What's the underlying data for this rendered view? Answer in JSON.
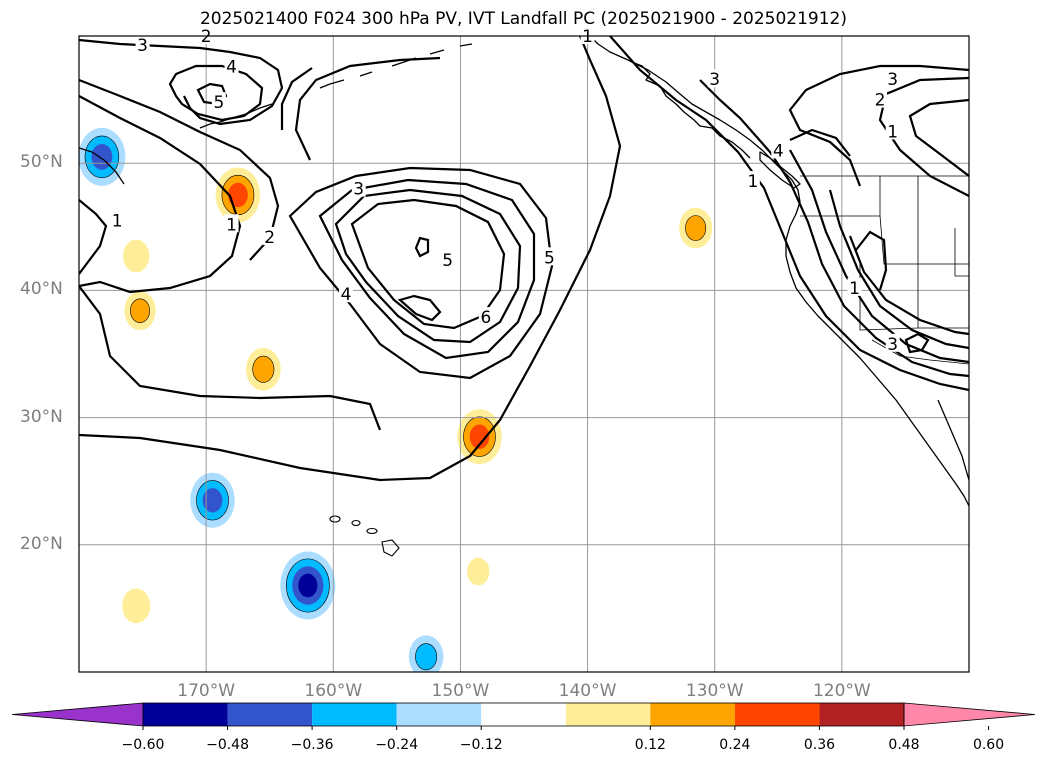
{
  "title": "2025021400 F024 300 hPa PV, IVT Landfall PC (2025021900 - 2025021912)",
  "map": {
    "projection": "plate-carree",
    "lon_range": [
      -180,
      -110
    ],
    "lat_range": [
      10,
      60
    ],
    "gridlines": true,
    "lat_ticks": [
      {
        "value": 50,
        "label": "50°N"
      },
      {
        "value": 40,
        "label": "40°N"
      },
      {
        "value": 30,
        "label": "30°N"
      },
      {
        "value": 20,
        "label": "20°N"
      }
    ],
    "lon_ticks": [
      {
        "value": -170,
        "label": "170°W"
      },
      {
        "value": -160,
        "label": "160°W"
      },
      {
        "value": -150,
        "label": "150°W"
      },
      {
        "value": -140,
        "label": "140°W"
      },
      {
        "value": -130,
        "label": "130°W"
      },
      {
        "value": -120,
        "label": "120°W"
      }
    ]
  },
  "pv_contours": {
    "variable": "300 hPa PV",
    "labels": [
      {
        "text": "3",
        "lon": -175,
        "lat": 59.3
      },
      {
        "text": "2",
        "lon": -170,
        "lat": 60.0
      },
      {
        "text": "4",
        "lon": -168,
        "lat": 57.6
      },
      {
        "text": "5",
        "lon": -169,
        "lat": 54.8
      },
      {
        "text": "3",
        "lon": -158,
        "lat": 48.0
      },
      {
        "text": "1",
        "lon": -168,
        "lat": 45.2
      },
      {
        "text": "2",
        "lon": -165,
        "lat": 44.2
      },
      {
        "text": "1",
        "lon": -177,
        "lat": 45.5
      },
      {
        "text": "4",
        "lon": -159,
        "lat": 39.7
      },
      {
        "text": "5",
        "lon": -151,
        "lat": 42.4
      },
      {
        "text": "5",
        "lon": -143,
        "lat": 42.6
      },
      {
        "text": "6",
        "lon": -148,
        "lat": 37.9
      },
      {
        "text": "1",
        "lon": -140,
        "lat": 60.0
      },
      {
        "text": "3",
        "lon": -130,
        "lat": 56.6
      },
      {
        "text": "1",
        "lon": -127,
        "lat": 48.6
      },
      {
        "text": "4",
        "lon": -125,
        "lat": 51.0
      },
      {
        "text": "3",
        "lon": -116,
        "lat": 56.6
      },
      {
        "text": "2",
        "lon": -117,
        "lat": 55.0
      },
      {
        "text": "1",
        "lon": -116,
        "lat": 52.5
      },
      {
        "text": "1",
        "lon": -119,
        "lat": 40.2
      },
      {
        "text": "3",
        "lon": -116,
        "lat": 35.8
      }
    ]
  },
  "ivt_pc": {
    "variable": "IVT Landfall PC",
    "anomalies": [
      {
        "lon": -167.5,
        "lat": 47.5,
        "peak": 0.42
      },
      {
        "lon": -148.5,
        "lat": 28.5,
        "peak": 0.42
      },
      {
        "lon": -165.5,
        "lat": 33.8,
        "peak": 0.3
      },
      {
        "lon": -131.5,
        "lat": 44.9,
        "peak": 0.28
      },
      {
        "lon": -175.5,
        "lat": 42.7,
        "peak": 0.2
      },
      {
        "lon": -175.2,
        "lat": 38.4,
        "peak": 0.26
      },
      {
        "lon": -148.6,
        "lat": 17.9,
        "peak": 0.15
      },
      {
        "lon": -175.5,
        "lat": 15.2,
        "peak": 0.22
      },
      {
        "lon": -178.2,
        "lat": 50.5,
        "peak": -0.45
      },
      {
        "lon": -169.5,
        "lat": 23.5,
        "peak": -0.42
      },
      {
        "lon": -162.0,
        "lat": 16.8,
        "peak": -0.55
      },
      {
        "lon": -152.7,
        "lat": 11.2,
        "peak": -0.3
      }
    ]
  },
  "colorbar": {
    "ticks": [
      "−0.60",
      "−0.48",
      "−0.36",
      "−0.24",
      "−0.12",
      "0.12",
      "0.24",
      "0.36",
      "0.48",
      "0.60"
    ],
    "under_color": "#9933cc",
    "over_color": "#ff88aa",
    "colors": [
      "#000099",
      "#3355cc",
      "#00bbff",
      "#aaddff",
      "#ffffff",
      "#ffee99",
      "#ffa500",
      "#ff4500",
      "#b22222"
    ]
  }
}
